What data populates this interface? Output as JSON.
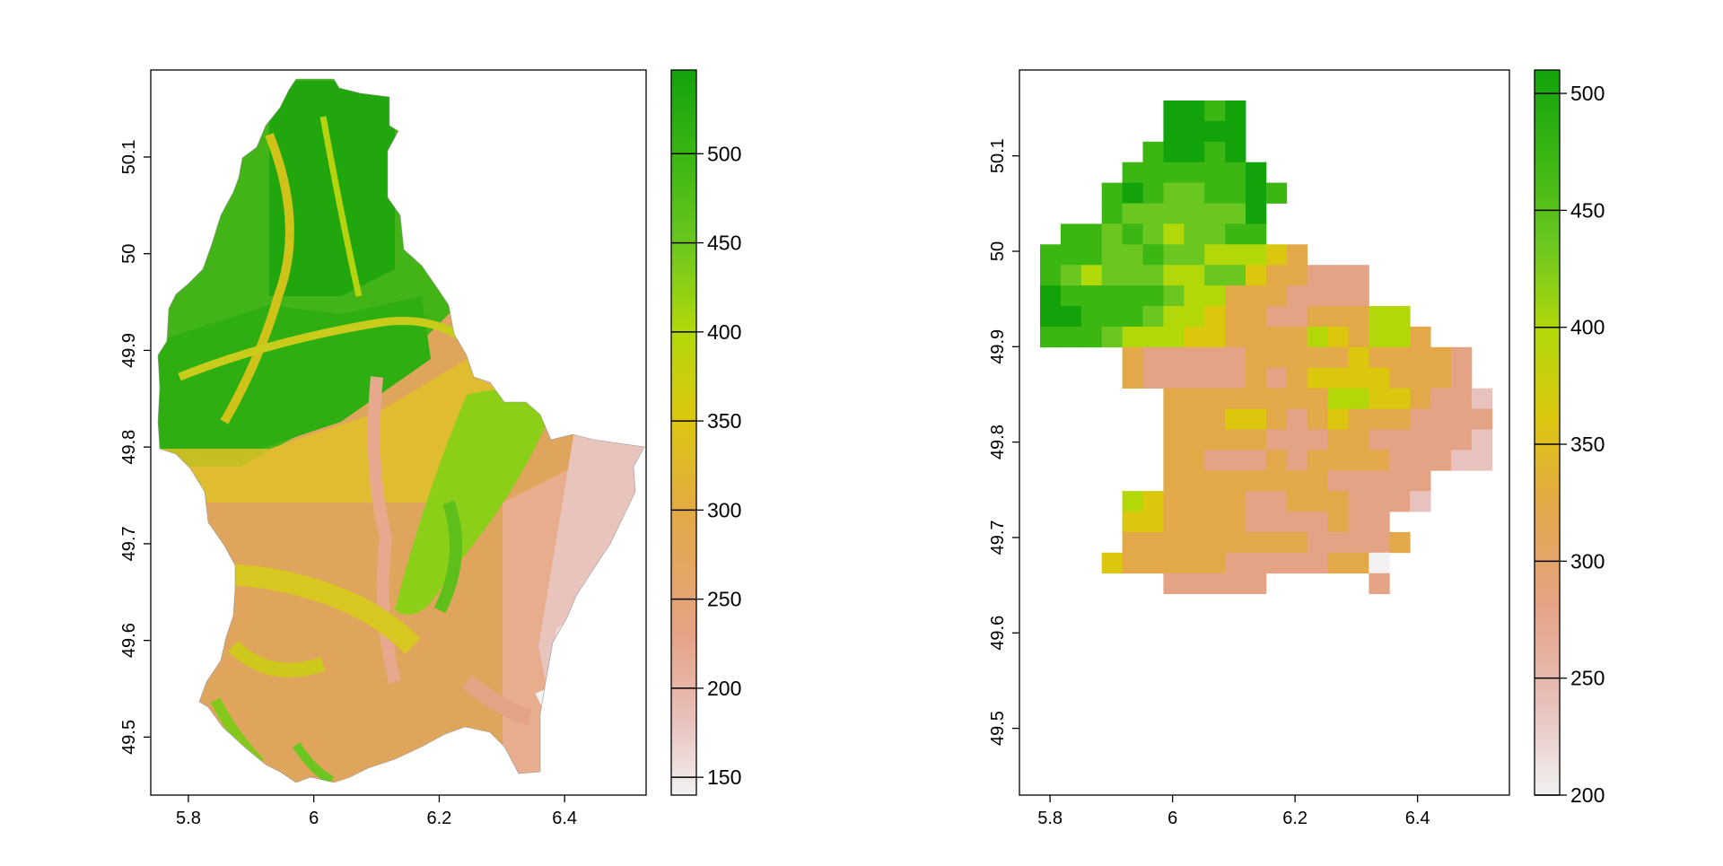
{
  "maps": [
    {
      "id": "elevation-fine",
      "x_ticks": [
        "5.8",
        "6",
        "6.2",
        "6.4"
      ],
      "y_ticks": [
        "49.5",
        "49.6",
        "49.7",
        "49.8",
        "49.9",
        "50",
        "50.1"
      ],
      "x_range": [
        5.74,
        6.53
      ],
      "y_range": [
        49.44,
        50.19
      ],
      "legend": {
        "ticks": [
          "150",
          "200",
          "250",
          "300",
          "350",
          "400",
          "450",
          "500"
        ],
        "tick_values": [
          150,
          200,
          250,
          300,
          350,
          400,
          450,
          500
        ],
        "range": [
          140,
          547
        ]
      }
    },
    {
      "id": "elevation-coarse",
      "x_ticks": [
        "5.8",
        "6",
        "6.2",
        "6.4"
      ],
      "y_ticks": [
        "49.5",
        "49.6",
        "49.7",
        "49.8",
        "49.9",
        "50",
        "50.1"
      ],
      "x_range": [
        5.75,
        6.55
      ],
      "y_range": [
        49.43,
        50.19
      ],
      "legend": {
        "ticks": [
          "200",
          "250",
          "300",
          "350",
          "400",
          "450",
          "500"
        ],
        "tick_values": [
          200,
          250,
          300,
          350,
          400,
          450,
          500
        ],
        "range": [
          200,
          510
        ]
      }
    }
  ],
  "colors": {
    "palette": [
      "#f2f2f2",
      "#e8c2bd",
      "#e5a386",
      "#e3a848",
      "#dcc70f",
      "#b2d80a",
      "#6bc71f",
      "#3bb613",
      "#12a30b"
    ],
    "frame": "#000000",
    "background": "#ffffff"
  }
}
